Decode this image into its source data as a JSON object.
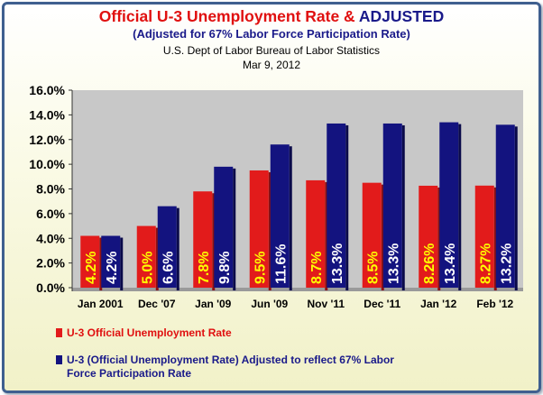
{
  "title_part1": "Official U-3 Unemployment Rate & ",
  "title_part2": "ADJUSTED",
  "subtitle": "(Adjusted for 67% Labor Force Participation Rate)",
  "source": "U.S. Dept of Labor Bureau of Labor Statistics",
  "date": "Mar 9, 2012",
  "colors": {
    "official": "#e21b1b",
    "adjusted": "#13137f",
    "official_label": "#ffff00",
    "adjusted_label": "#ffffff",
    "plot_bg": "#c8c8c8"
  },
  "chart_data": {
    "type": "bar",
    "categories": [
      "Jan 2001",
      "Dec '07",
      "Jan '09",
      "Jun '09",
      "Nov '11",
      "Dec '11",
      "Jan '12",
      "Feb '12"
    ],
    "series": [
      {
        "name": "U-3 Official Unemployment Rate",
        "values": [
          4.2,
          5.0,
          7.8,
          9.5,
          8.7,
          8.5,
          8.26,
          8.27
        ],
        "labels": [
          "4.2%",
          "5.0%",
          "7.8%",
          "9.5%",
          "8.7%",
          "8.5%",
          "8.26%",
          "8.27%"
        ]
      },
      {
        "name": "U-3 (Official Unemployment  Rate) Adjusted to reflect 67% Labor Force Participation Rate",
        "values": [
          4.2,
          6.6,
          9.8,
          11.6,
          13.3,
          13.3,
          13.4,
          13.2
        ],
        "labels": [
          "4.2%",
          "6.6%",
          "9.8%",
          "11.6%",
          "13.3%",
          "13.3%",
          "13.4%",
          "13.2%"
        ]
      }
    ],
    "y_ticks": [
      "0.0%",
      "2.0%",
      "4.0%",
      "6.0%",
      "8.0%",
      "10.0%",
      "12.0%",
      "14.0%",
      "16.0%"
    ],
    "ylim": [
      0,
      16
    ],
    "grid": false,
    "legend_position": "bottom"
  },
  "legend": {
    "item1": "U-3 Official Unemployment Rate",
    "item2_line1": "U-3 (Official Unemployment  Rate) Adjusted to reflect 67% Labor",
    "item2_line2": "Force Participation Rate"
  }
}
